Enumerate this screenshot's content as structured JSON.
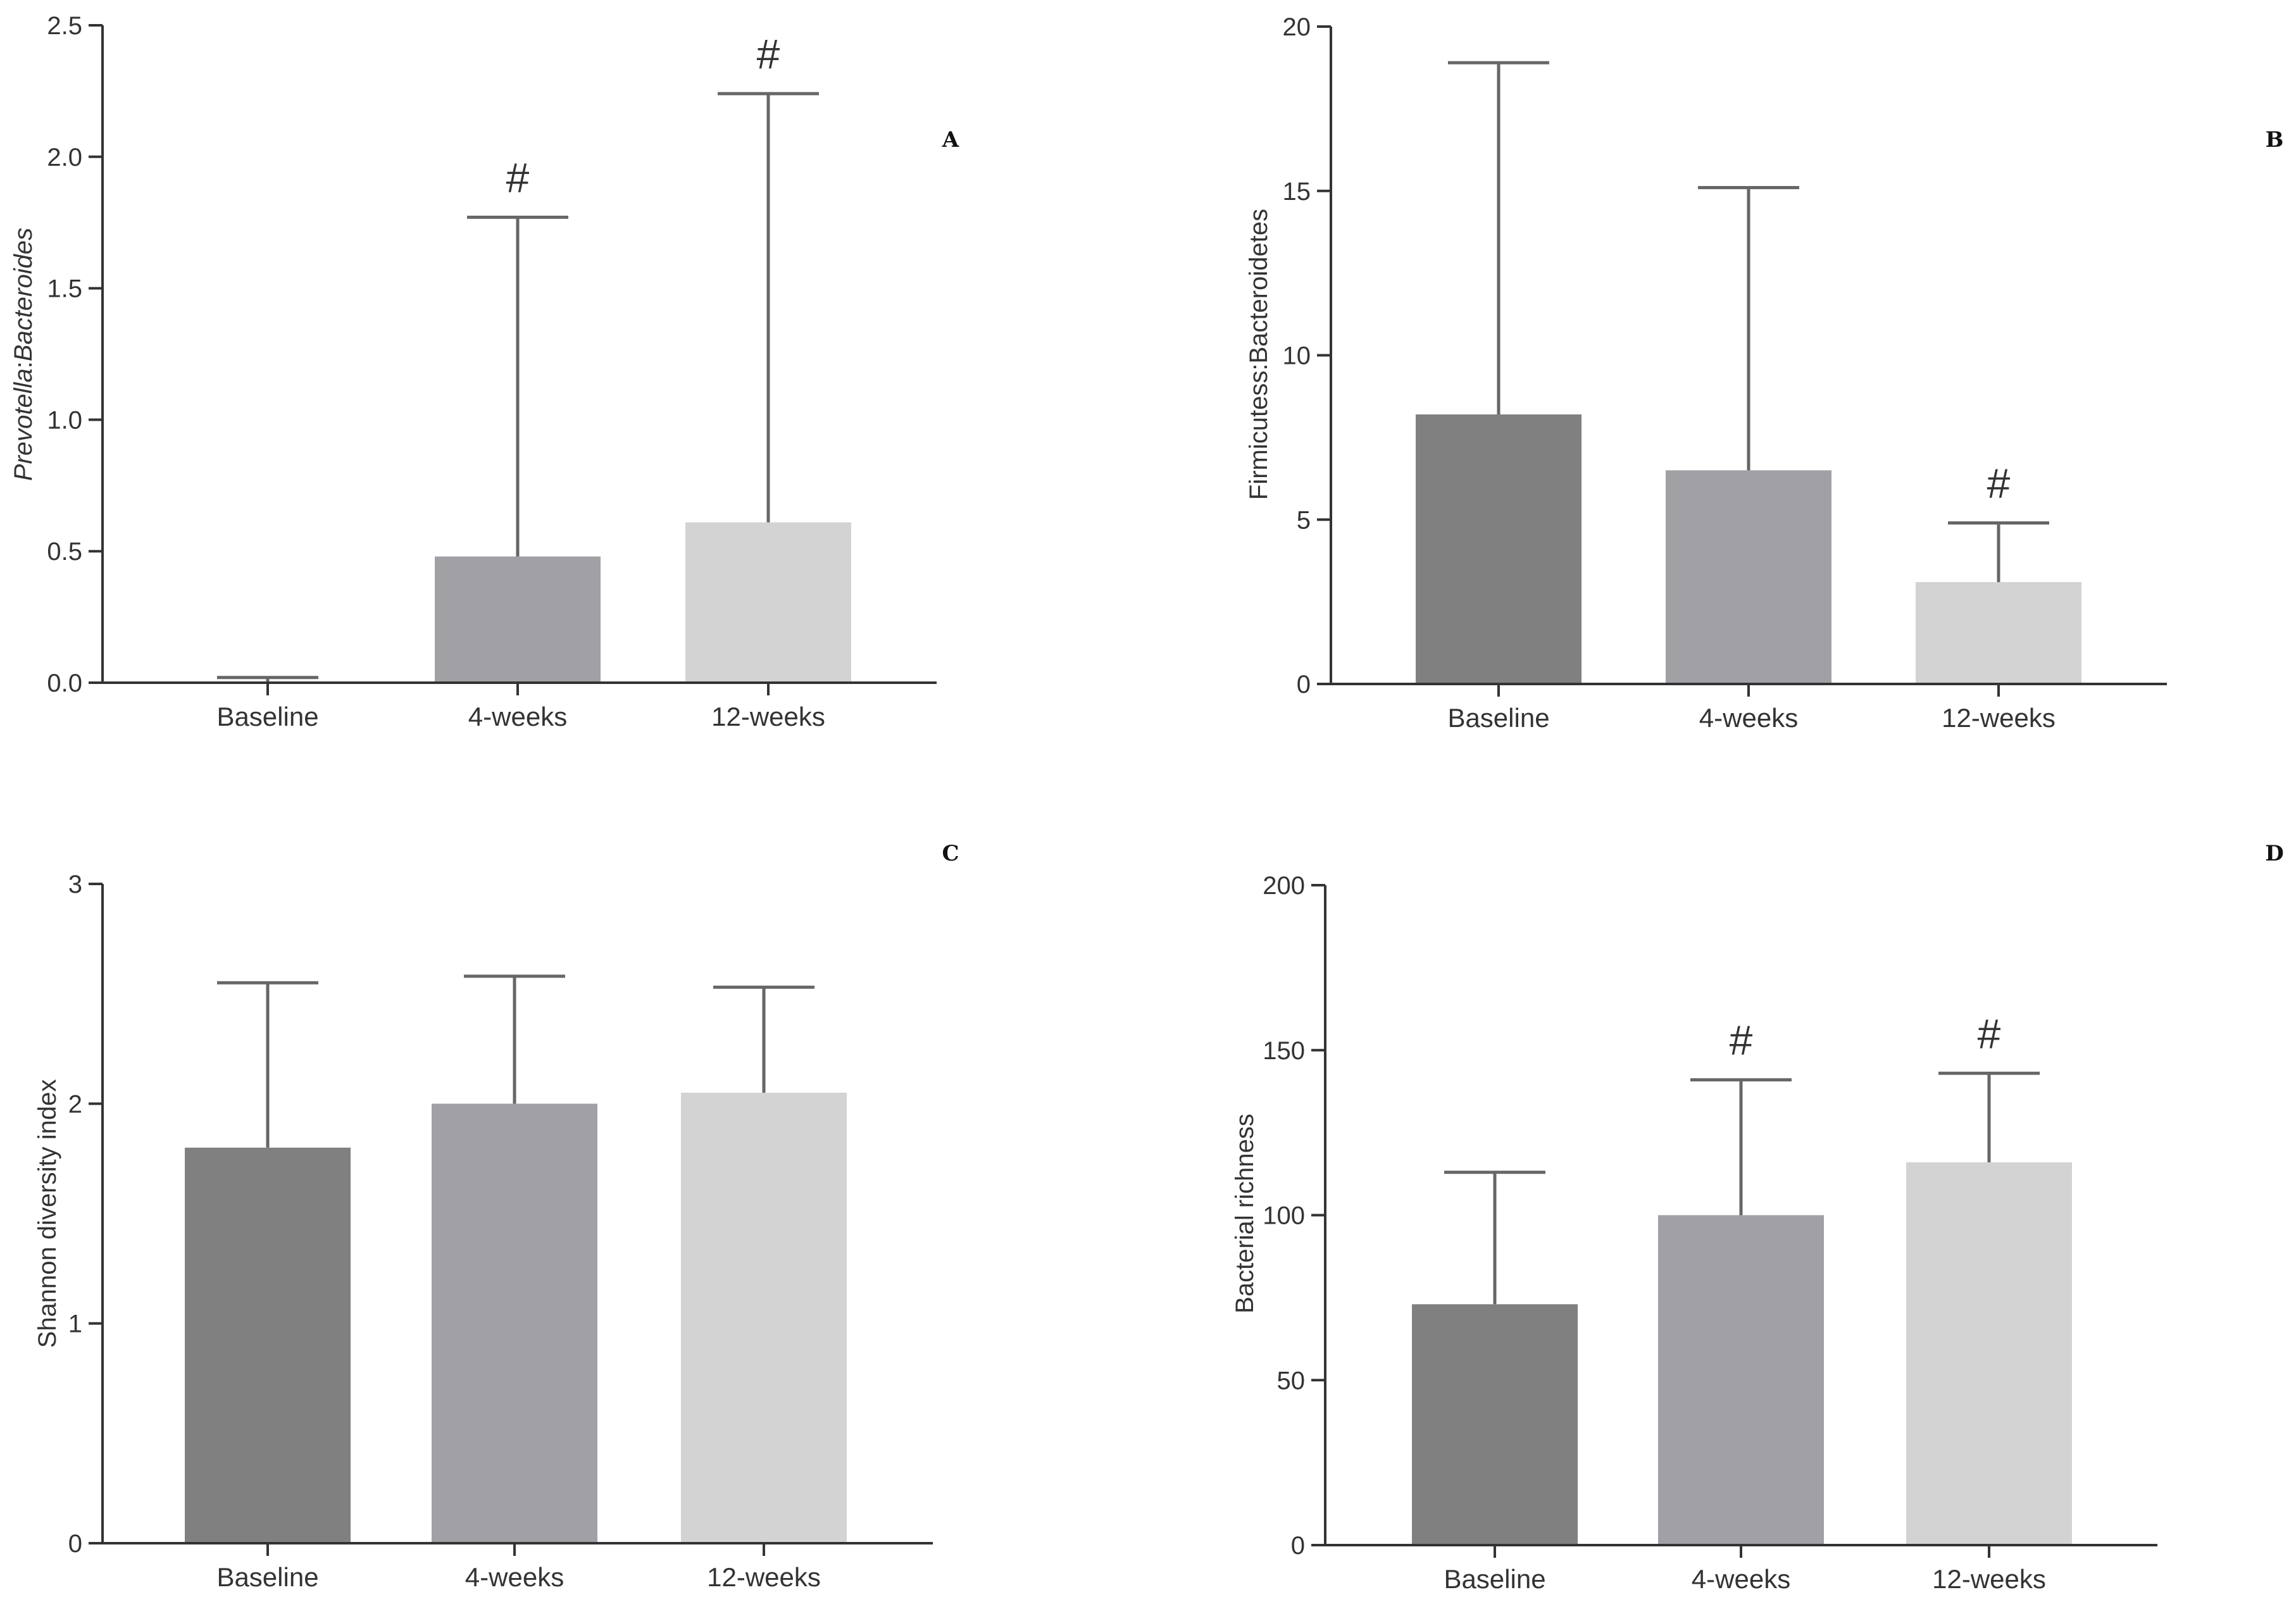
{
  "colors": {
    "axis": "#333333",
    "error": "#666666",
    "bars": [
      "#808080",
      "#a1a0a5",
      "#d3d3d3"
    ]
  },
  "chart_data": [
    {
      "id": "A",
      "type": "bar",
      "panel_label": "A",
      "categories": [
        "Baseline",
        "4-weeks",
        "12-weeks"
      ],
      "values": [
        0.0,
        0.48,
        0.61
      ],
      "error_upper": [
        0.02,
        1.77,
        2.24
      ],
      "markers": [
        "",
        "#",
        "#"
      ],
      "ylabel": {
        "italic1": "Prevotella",
        "sep": ":",
        "italic2": "Bacteroides"
      },
      "ylim": [
        0,
        2.5
      ],
      "yticks": [
        0,
        0.5,
        1.0,
        1.5,
        2.0,
        2.5
      ],
      "ytick_labels": [
        "0.0",
        "0.5",
        "1.0",
        "1.5",
        "2.0",
        "2.5"
      ]
    },
    {
      "id": "B",
      "type": "bar",
      "panel_label": "B",
      "categories": [
        "Baseline",
        "4-weeks",
        "12-weeks"
      ],
      "values": [
        8.2,
        6.5,
        3.1
      ],
      "error_upper": [
        18.9,
        15.1,
        4.9
      ],
      "markers": [
        "",
        "",
        "#"
      ],
      "ylabel": "Firmicutess:Bacteroidetes",
      "ylim": [
        0,
        20
      ],
      "yticks": [
        0,
        5,
        10,
        15,
        20
      ],
      "ytick_labels": [
        "0",
        "5",
        "10",
        "15",
        "20"
      ]
    },
    {
      "id": "C",
      "type": "bar",
      "panel_label": "C",
      "categories": [
        "Baseline",
        "4-weeks",
        "12-weeks"
      ],
      "values": [
        1.8,
        2.0,
        2.05
      ],
      "error_upper": [
        2.55,
        2.58,
        2.53
      ],
      "markers": [
        "",
        "",
        ""
      ],
      "ylabel": "Shannon diversity index",
      "ylim": [
        0,
        3
      ],
      "yticks": [
        0,
        1,
        2,
        3
      ],
      "ytick_labels": [
        "0",
        "1",
        "2",
        "3"
      ]
    },
    {
      "id": "D",
      "type": "bar",
      "panel_label": "D",
      "categories": [
        "Baseline",
        "4-weeks",
        "12-weeks"
      ],
      "values": [
        73,
        100,
        116
      ],
      "error_upper": [
        113,
        141,
        143
      ],
      "markers": [
        "",
        "#",
        "#"
      ],
      "ylabel": "Bacterial richness",
      "ylim": [
        0,
        200
      ],
      "yticks": [
        0,
        50,
        100,
        150,
        200
      ],
      "ytick_labels": [
        "0",
        "50",
        "100",
        "150",
        "200"
      ]
    }
  ]
}
